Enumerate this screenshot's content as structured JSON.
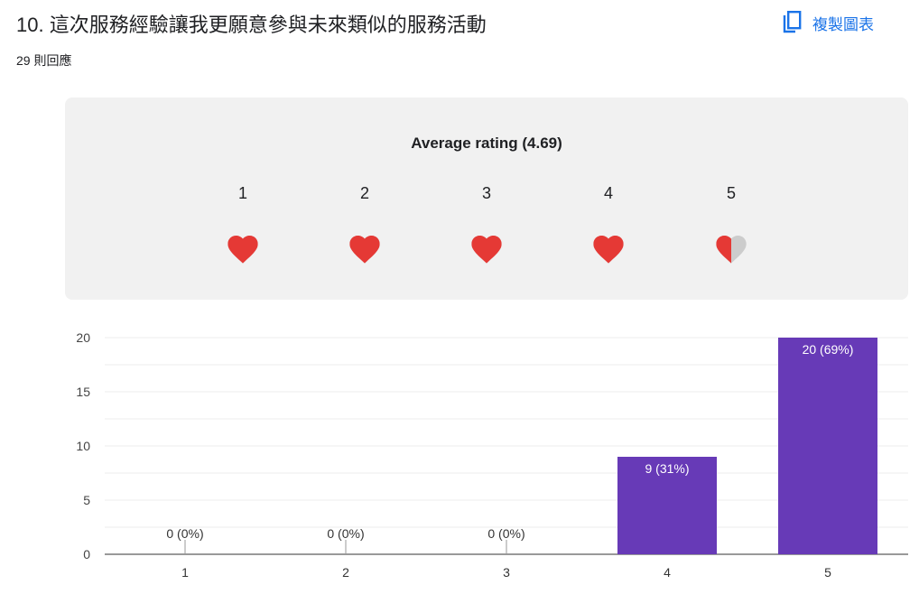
{
  "header": {
    "title": "10. 這次服務經驗讓我更願意參與未來類似的服務活動",
    "responses": "29 則回應",
    "copy_label": "複製圖表",
    "copy_icon": "copy-icon"
  },
  "rating": {
    "title": "Average rating (4.69)",
    "average": 4.69,
    "scale": [
      {
        "label": "1",
        "fill": 1
      },
      {
        "label": "2",
        "fill": 1
      },
      {
        "label": "3",
        "fill": 1
      },
      {
        "label": "4",
        "fill": 1
      },
      {
        "label": "5",
        "fill": 0.5
      }
    ],
    "icon": "heart-icon",
    "heart_color": "#e53935",
    "empty_color": "#cccccc"
  },
  "chart_data": {
    "type": "bar",
    "categories": [
      "1",
      "2",
      "3",
      "4",
      "5"
    ],
    "values": [
      0,
      0,
      0,
      9,
      20
    ],
    "data_labels": [
      "0 (0%)",
      "0 (0%)",
      "0 (0%)",
      "9 (31%)",
      "20 (69%)"
    ],
    "yticks": [
      "0",
      "5",
      "10",
      "15",
      "20"
    ],
    "ylim": [
      0,
      20
    ],
    "bar_color": "#673ab7",
    "grid": true
  }
}
